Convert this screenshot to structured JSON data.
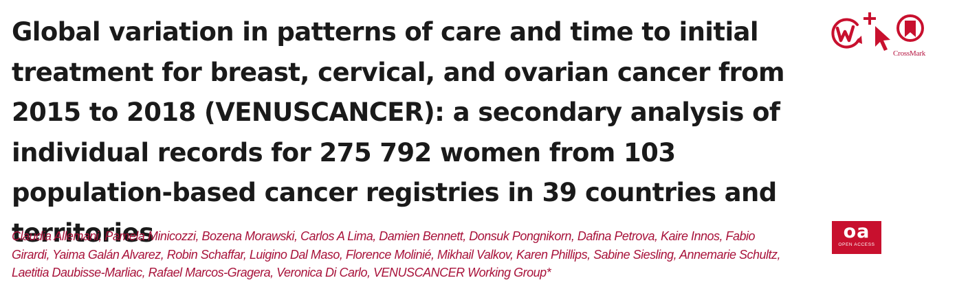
{
  "article": {
    "title": "Global variation in patterns of care and time to initial treatment for breast, cervical, and ovarian cancer from 2015 to 2018 (VENUSCANCER): a secondary analysis of individual records for 275 792 women from 103 population-based cancer registries in 39 countries and territories",
    "authors": "Claudia Allemani, Pamela Minicozzi, Bozena Morawski, Carlos A Lima, Damien Bennett, Donsuk Pongnikorn, Dafina Petrova, Kaire Innos, Fabio Girardi, Yaima Galán Alvarez, Robin Schaffar, Luigino Dal Maso, Florence Molinié, Mikhail Valkov, Karen Phillips, Sabine Siesling, Annemarie Schultz, Laetitia Daubisse-Marliac, Rafael Marcos-Gragera, Veronica Di Carlo, VENUSCANCER Working Group*"
  },
  "badges": {
    "crossmark_label": "CrossMark",
    "oa_main": "oa",
    "oa_sub": "OPEN ACCESS"
  },
  "icons": [
    "web-first-icon",
    "cursor-plus-icon",
    "crossmark-icon"
  ],
  "colors": {
    "accent": "#c8102e",
    "author_text": "#a8123a",
    "title_text": "#1a1a1a"
  }
}
